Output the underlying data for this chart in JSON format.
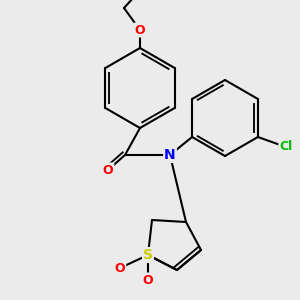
{
  "background_color": "#ebebeb",
  "bond_color": "#000000",
  "bond_width": 1.5,
  "atom_colors": {
    "S": "#cccc00",
    "N": "#0000ff",
    "O": "#ff0000",
    "Cl": "#00bb00"
  },
  "figsize": [
    3.0,
    3.0
  ],
  "dpi": 100
}
